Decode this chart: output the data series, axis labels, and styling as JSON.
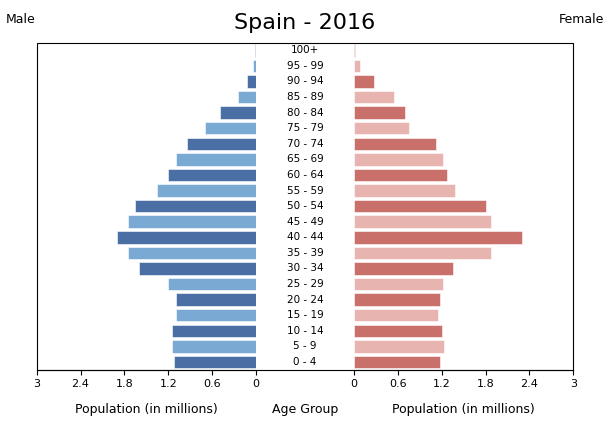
{
  "title": "Spain - 2016",
  "male_label": "Male",
  "female_label": "Female",
  "xlabel": "Population (in millions)",
  "center_label": "Age Group",
  "age_groups": [
    "100+",
    "95 - 99",
    "90 - 94",
    "85 - 89",
    "80 - 84",
    "75 - 79",
    "70 - 74",
    "65 - 69",
    "60 - 64",
    "55 - 59",
    "50 - 54",
    "45 - 49",
    "40 - 44",
    "35 - 39",
    "30 - 34",
    "25 - 29",
    "20 - 24",
    "15 - 19",
    "10 - 14",
    "5 - 9",
    "0 - 4"
  ],
  "male_values": [
    0.02,
    0.05,
    0.13,
    0.25,
    0.5,
    0.7,
    0.95,
    1.1,
    1.2,
    1.35,
    1.65,
    1.75,
    1.9,
    1.75,
    1.6,
    1.2,
    1.1,
    1.1,
    1.15,
    1.15,
    1.12
  ],
  "female_values": [
    0.02,
    0.08,
    0.28,
    0.55,
    0.7,
    0.75,
    1.12,
    1.22,
    1.27,
    1.38,
    1.8,
    1.87,
    2.3,
    1.88,
    1.35,
    1.22,
    1.18,
    1.15,
    1.2,
    1.23,
    1.18
  ],
  "male_colors": [
    "#4a6fa5",
    "#7aaad4",
    "#4a6fa5",
    "#7aaad4",
    "#4a6fa5",
    "#7aaad4",
    "#4a6fa5",
    "#7aaad4",
    "#4a6fa5",
    "#7aaad4",
    "#4a6fa5",
    "#7aaad4",
    "#4a6fa5",
    "#7aaad4",
    "#4a6fa5",
    "#7aaad4",
    "#4a6fa5",
    "#7aaad4",
    "#4a6fa5",
    "#7aaad4",
    "#4a6fa5"
  ],
  "female_colors": [
    "#c9706a",
    "#e8b4b0",
    "#c9706a",
    "#e8b4b0",
    "#c9706a",
    "#e8b4b0",
    "#c9706a",
    "#e8b4b0",
    "#c9706a",
    "#e8b4b0",
    "#c9706a",
    "#e8b4b0",
    "#c9706a",
    "#e8b4b0",
    "#c9706a",
    "#e8b4b0",
    "#c9706a",
    "#e8b4b0",
    "#c9706a",
    "#e8b4b0",
    "#c9706a"
  ],
  "xlim": 3.0,
  "xticks": [
    0,
    0.6,
    1.2,
    1.8,
    2.4,
    3.0
  ],
  "background_color": "#ffffff",
  "bar_height": 0.8,
  "title_fontsize": 16,
  "label_fontsize": 9,
  "tick_fontsize": 8,
  "age_label_fontsize": 7.5
}
